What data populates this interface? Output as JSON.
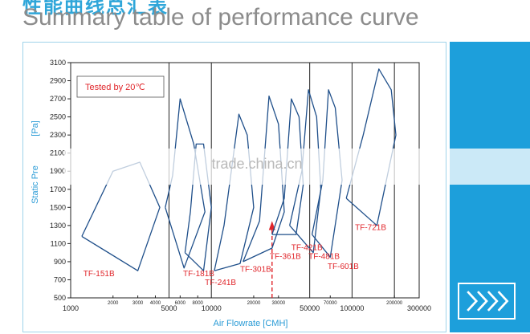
{
  "header": {
    "cn_title": "性能曲线总汇表",
    "en_title": "Summary table of  performance curve"
  },
  "watermark": "trade.china.cn",
  "side_panel": {
    "color": "#1d9fdb",
    "icon": "chevrons-right-icon"
  },
  "chart_data": {
    "type": "line",
    "title": "",
    "annotation": "Tested  by 20℃",
    "xlabel": "Air Flowrate  [CMH]",
    "ylabel": "Static Pressure [Pa]",
    "ylabel_visible": "Static Pre",
    "ylabel_unit": "[Pa]",
    "xscale": "log",
    "xlim": [
      1000,
      300000
    ],
    "ylim": [
      500,
      3100
    ],
    "yticks": [
      500,
      700,
      900,
      1100,
      1300,
      1500,
      1700,
      1900,
      2100,
      2300,
      2500,
      2700,
      2900,
      3100
    ],
    "xticks_major": [
      {
        "value": 1000,
        "label": "1000"
      },
      {
        "value": 5000,
        "label": "5000"
      },
      {
        "value": 10000,
        "label": "10000"
      },
      {
        "value": 50000,
        "label": "50000"
      },
      {
        "value": 100000,
        "label": "100000"
      },
      {
        "value": 300000,
        "label": "300000"
      }
    ],
    "xticks_minor": [
      {
        "value": 2000,
        "label": "2000"
      },
      {
        "value": 3000,
        "label": "3000"
      },
      {
        "value": 4000,
        "label": "4000"
      },
      {
        "value": 6000,
        "label": "6000"
      },
      {
        "value": 8000,
        "label": "8000"
      },
      {
        "value": 20000,
        "label": "20000"
      },
      {
        "value": 30000,
        "label": "30000"
      },
      {
        "value": 70000,
        "label": "70000"
      },
      {
        "value": 200000,
        "label": "200000"
      }
    ],
    "vertical_lines": [
      5000,
      10000,
      50000,
      100000,
      200000
    ],
    "highlight_x": 27000,
    "line_color": "#1f4f8a",
    "grid_color": "#222222",
    "label_color": "#e0262b",
    "axis_label_color": "#2a9bd6",
    "series": [
      {
        "name": "TF-151B",
        "label_at": [
          1230,
          740
        ],
        "points": [
          [
            1200,
            1180
          ],
          [
            2000,
            1900
          ],
          [
            3100,
            2000
          ],
          [
            4300,
            1500
          ],
          [
            3000,
            800
          ],
          [
            1200,
            1180
          ]
        ]
      },
      {
        "name": "TF-181B",
        "label_at": [
          6300,
          740
        ],
        "points": [
          [
            4700,
            1500
          ],
          [
            5300,
            1850
          ],
          [
            6000,
            2700
          ],
          [
            7500,
            2200
          ],
          [
            9000,
            1450
          ],
          [
            6400,
            830
          ],
          [
            4700,
            1500
          ]
        ]
      },
      {
        "name": "TF-241B",
        "label_at": [
          9000,
          640
        ],
        "points": [
          [
            6500,
            1000
          ],
          [
            7100,
            1450
          ],
          [
            7800,
            2200
          ],
          [
            8800,
            2200
          ],
          [
            10000,
            1500
          ],
          [
            8800,
            800
          ],
          [
            6500,
            1000
          ]
        ]
      },
      {
        "name": "TF-301B",
        "label_at": [
          16000,
          790
        ],
        "points": [
          [
            10500,
            800
          ],
          [
            12300,
            1300
          ],
          [
            15700,
            2530
          ],
          [
            18000,
            2300
          ],
          [
            20000,
            1500
          ],
          [
            16000,
            880
          ],
          [
            10500,
            800
          ]
        ]
      },
      {
        "name": "TF-361B",
        "label_at": [
          26000,
          930
        ],
        "points": [
          [
            16800,
            900
          ],
          [
            22000,
            1350
          ],
          [
            25700,
            2730
          ],
          [
            30000,
            2420
          ],
          [
            33000,
            1450
          ],
          [
            27000,
            1050
          ],
          [
            16800,
            900
          ]
        ]
      },
      {
        "name": "TF-421B",
        "label_at": [
          37000,
          1030
        ],
        "points": [
          [
            27000,
            1200
          ],
          [
            33000,
            1600
          ],
          [
            37000,
            2700
          ],
          [
            42000,
            2500
          ],
          [
            45000,
            1750
          ],
          [
            40000,
            1200
          ],
          [
            27000,
            1200
          ]
        ]
      },
      {
        "name": "TF-481B",
        "label_at": [
          49000,
          930
        ],
        "points": [
          [
            36000,
            1300
          ],
          [
            44000,
            1900
          ],
          [
            49000,
            2800
          ],
          [
            56000,
            2500
          ],
          [
            60000,
            1700
          ],
          [
            53000,
            1000
          ],
          [
            36000,
            1300
          ]
        ]
      },
      {
        "name": "TF-601B",
        "label_at": [
          67000,
          820
        ],
        "points": [
          [
            52000,
            1200
          ],
          [
            62000,
            1800
          ],
          [
            68000,
            2800
          ],
          [
            76000,
            2600
          ],
          [
            85000,
            1800
          ],
          [
            70000,
            950
          ],
          [
            52000,
            1200
          ]
        ]
      },
      {
        "name": "TF-721B",
        "label_at": [
          105000,
          1250
        ],
        "points": [
          [
            91000,
            1600
          ],
          [
            120000,
            2300
          ],
          [
            155000,
            3030
          ],
          [
            190000,
            2800
          ],
          [
            205000,
            2300
          ],
          [
            150000,
            1300
          ],
          [
            91000,
            1600
          ]
        ]
      }
    ]
  }
}
